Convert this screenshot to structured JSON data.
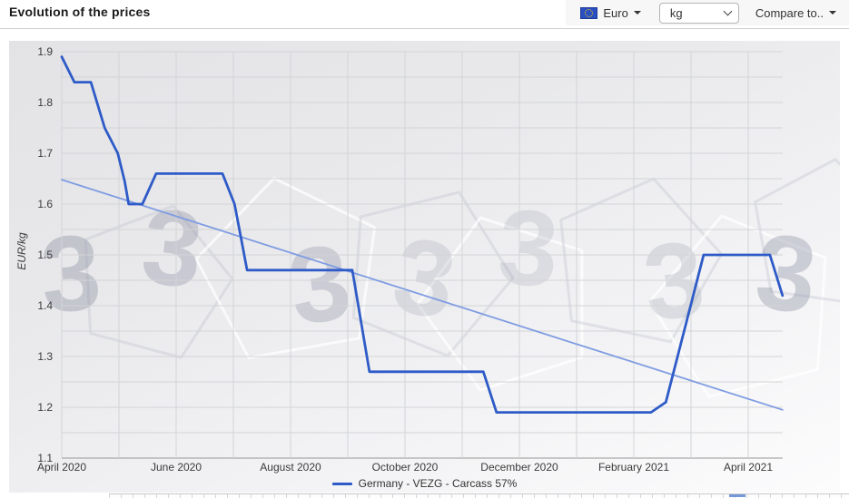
{
  "header": {
    "title": "Evolution of the prices",
    "currency_label": "Euro",
    "unit_value": "kg",
    "compare_label": "Compare to.."
  },
  "watermark_glyph": "3",
  "chart_data": {
    "type": "line",
    "title": "",
    "xlabel": "",
    "ylabel": "EUR/kg",
    "ylim": [
      1.1,
      1.9
    ],
    "y_tick_step": 0.1,
    "y_minor_step": 0.05,
    "x_span_months": 12.6,
    "grid": true,
    "legend_position": "bottom",
    "x_ticks": [
      [
        0,
        "April 2020"
      ],
      [
        2,
        "June 2020"
      ],
      [
        4,
        "August 2020"
      ],
      [
        6,
        "October 2020"
      ],
      [
        8,
        "December 2020"
      ],
      [
        10,
        "February 2021"
      ],
      [
        12,
        "April 2021"
      ]
    ],
    "series": [
      {
        "name": "Germany - VEZG - Carcass 57%",
        "color": "#2e5bc7",
        "width": 2.8,
        "points": [
          [
            0.0,
            1.89
          ],
          [
            0.22,
            1.84
          ],
          [
            0.51,
            1.84
          ],
          [
            0.75,
            1.75
          ],
          [
            0.98,
            1.7
          ],
          [
            1.1,
            1.645
          ],
          [
            1.17,
            1.6
          ],
          [
            1.41,
            1.6
          ],
          [
            1.65,
            1.66
          ],
          [
            2.81,
            1.66
          ],
          [
            3.02,
            1.6
          ],
          [
            3.14,
            1.53
          ],
          [
            3.24,
            1.47
          ],
          [
            5.08,
            1.47
          ],
          [
            5.38,
            1.27
          ],
          [
            7.37,
            1.27
          ],
          [
            7.6,
            1.19
          ],
          [
            10.3,
            1.19
          ],
          [
            10.56,
            1.21
          ],
          [
            11.22,
            1.5
          ],
          [
            12.38,
            1.5
          ],
          [
            12.6,
            1.42
          ]
        ]
      },
      {
        "name": "Linear trend",
        "color": "#7f9ce2",
        "width": 1.8,
        "points": [
          [
            0,
            1.648
          ],
          [
            12.6,
            1.195
          ]
        ]
      }
    ]
  }
}
